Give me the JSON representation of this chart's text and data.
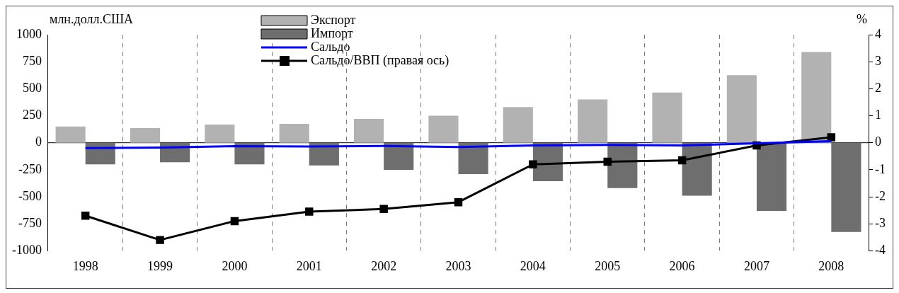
{
  "chart_data": {
    "type": "bar",
    "ylabel": "млн.долл.США",
    "y2label": "%",
    "categories": [
      "1998",
      "1999",
      "2000",
      "2001",
      "2002",
      "2003",
      "2004",
      "2005",
      "2006",
      "2007",
      "2008"
    ],
    "series": [
      {
        "name": "Экспорт",
        "color": "#b2b2b2",
        "values": [
          150,
          135,
          168,
          175,
          220,
          250,
          330,
          400,
          465,
          625,
          840
        ]
      },
      {
        "name": "Импорт",
        "color": "#6e6e6e",
        "values": [
          -200,
          -180,
          -200,
          -210,
          -250,
          -290,
          -355,
          -420,
          -490,
          -630,
          -825
        ]
      },
      {
        "name": "Сальдо",
        "type": "line",
        "color": "#0000ff",
        "marker": "none",
        "values": [
          -50,
          -45,
          -32,
          -35,
          -30,
          -40,
          -25,
          -20,
          -25,
          -5,
          15
        ]
      },
      {
        "name": "Сальдо/ВВП (правая ось)",
        "type": "line",
        "color": "#000000",
        "marker": "square",
        "axis": "y2",
        "values": [
          -2.7,
          -3.6,
          -2.9,
          -2.55,
          -2.45,
          -2.2,
          -0.8,
          -0.7,
          -0.65,
          -0.1,
          0.2
        ]
      }
    ],
    "ylim": [
      -1000,
      1000
    ],
    "yticks": [
      -1000,
      -750,
      -500,
      -250,
      0,
      250,
      500,
      750,
      1000
    ],
    "y2lim": [
      -4,
      4
    ],
    "y2ticks": [
      -4,
      -3,
      -2,
      -1,
      0,
      1,
      2,
      3,
      4
    ],
    "grid": "x",
    "legend": "top"
  }
}
